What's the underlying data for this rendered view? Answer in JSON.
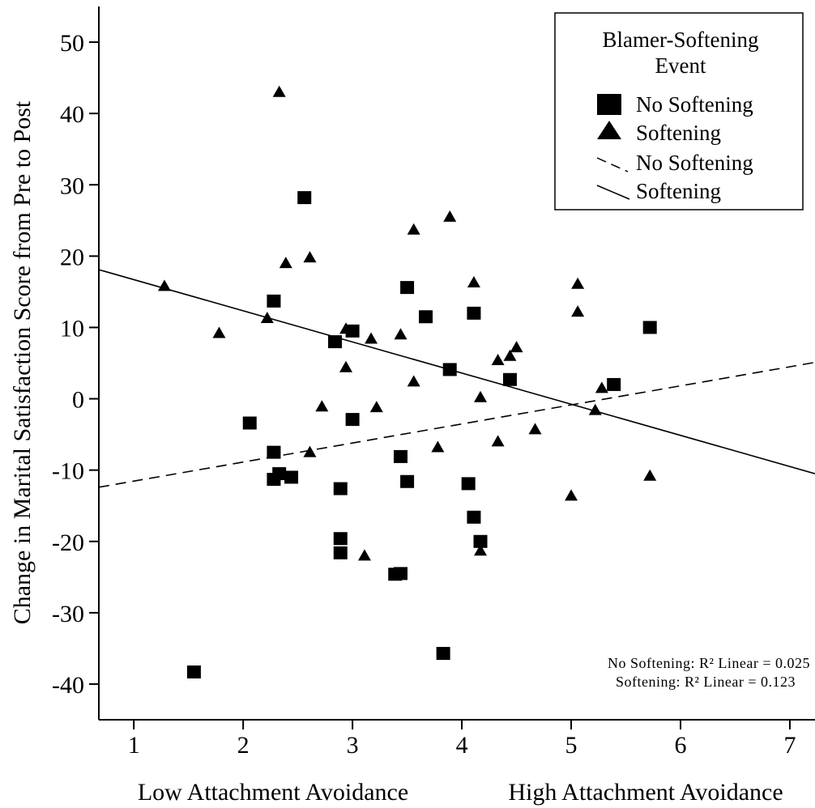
{
  "chart_data": {
    "type": "scatter",
    "title": "",
    "ylabel": "Change in Marital Satisfaction Score from Pre to Post",
    "xlabel_left": "Low Attachment Avoidance",
    "xlabel_right": "High Attachment Avoidance",
    "xlim": [
      0.68,
      7.23
    ],
    "ylim": [
      -45,
      55
    ],
    "xticks": [
      1,
      2,
      3,
      4,
      5,
      6,
      7
    ],
    "yticks": [
      50,
      40,
      30,
      20,
      10,
      0,
      -10,
      -20,
      -30,
      -40
    ],
    "grid": false,
    "legend": {
      "position": "top-right",
      "title": "Blamer-Softening Event",
      "title_lines": [
        "Blamer-Softening",
        "Event"
      ],
      "entries": [
        {
          "label": "No Softening",
          "kind": "marker",
          "marker": "square"
        },
        {
          "label": "Softening",
          "kind": "marker",
          "marker": "triangle"
        },
        {
          "label": "No Softening",
          "kind": "line",
          "dash": "dashed"
        },
        {
          "label": "Softening",
          "kind": "line",
          "dash": "solid"
        }
      ]
    },
    "annotations": {
      "r2_no_softening": "No Softening: R² Linear = 0.025",
      "r2_softening": "Softening: R² Linear = 0.123"
    },
    "series": [
      {
        "name": "No Softening",
        "marker": "square",
        "points": [
          [
            1.55,
            -38.3
          ],
          [
            2.06,
            -3.4
          ],
          [
            2.28,
            13.7
          ],
          [
            2.28,
            -7.5
          ],
          [
            2.28,
            -11.3
          ],
          [
            2.33,
            -10.5
          ],
          [
            2.44,
            -11.0
          ],
          [
            2.56,
            28.2
          ],
          [
            2.84,
            8.0
          ],
          [
            2.89,
            -12.6
          ],
          [
            2.89,
            -19.6
          ],
          [
            2.89,
            -21.6
          ],
          [
            3.0,
            9.5
          ],
          [
            3.0,
            -2.9
          ],
          [
            3.39,
            -24.6
          ],
          [
            3.44,
            -24.5
          ],
          [
            3.44,
            -8.1
          ],
          [
            3.5,
            15.6
          ],
          [
            3.5,
            -11.6
          ],
          [
            3.67,
            11.5
          ],
          [
            3.83,
            -35.7
          ],
          [
            3.89,
            4.1
          ],
          [
            4.06,
            -11.9
          ],
          [
            4.11,
            12.0
          ],
          [
            4.11,
            -16.6
          ],
          [
            4.17,
            -20.0
          ],
          [
            4.44,
            2.7
          ],
          [
            5.39,
            2.0
          ],
          [
            5.72,
            10.0
          ]
        ]
      },
      {
        "name": "Softening",
        "marker": "triangle",
        "points": [
          [
            1.28,
            15.8
          ],
          [
            1.78,
            9.2
          ],
          [
            2.22,
            11.3
          ],
          [
            2.33,
            43.0
          ],
          [
            2.39,
            19.0
          ],
          [
            2.61,
            19.8
          ],
          [
            2.61,
            -7.5
          ],
          [
            2.72,
            -1.1
          ],
          [
            2.94,
            9.8
          ],
          [
            2.94,
            4.4
          ],
          [
            3.11,
            -22.0
          ],
          [
            3.17,
            8.4
          ],
          [
            3.22,
            -1.2
          ],
          [
            3.44,
            9.0
          ],
          [
            3.56,
            23.7
          ],
          [
            3.56,
            2.4
          ],
          [
            3.78,
            -6.8
          ],
          [
            3.89,
            25.5
          ],
          [
            4.11,
            16.3
          ],
          [
            4.17,
            0.2
          ],
          [
            4.17,
            -21.3
          ],
          [
            4.33,
            5.4
          ],
          [
            4.33,
            -6.0
          ],
          [
            4.44,
            6.0
          ],
          [
            4.5,
            7.2
          ],
          [
            4.67,
            -4.3
          ],
          [
            5.0,
            -13.6
          ],
          [
            5.06,
            16.1
          ],
          [
            5.06,
            12.2
          ],
          [
            5.22,
            -1.6
          ],
          [
            5.28,
            1.5
          ],
          [
            5.72,
            -10.8
          ]
        ]
      }
    ],
    "fit_lines": [
      {
        "name": "No Softening",
        "dash": "dashed",
        "x": [
          0.68,
          7.23
        ],
        "y": [
          -12.4,
          5.1
        ]
      },
      {
        "name": "Softening",
        "dash": "solid",
        "x": [
          0.68,
          7.23
        ],
        "y": [
          18.1,
          -10.5
        ]
      }
    ]
  }
}
